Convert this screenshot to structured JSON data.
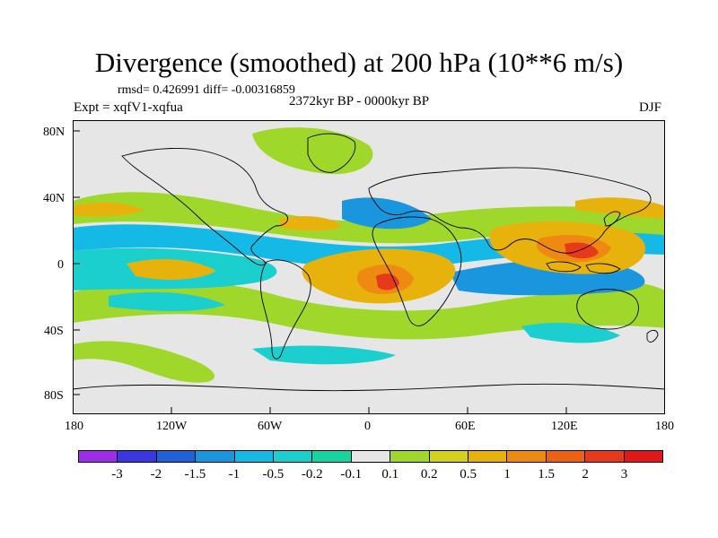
{
  "title": "Divergence (smoothed) at 200 hPa (10**6 m/s)",
  "stats": "rmsd= 0.426991 diff= -0.00316859",
  "experiment": "Expt = xqfV1-xqfua",
  "period": "2372kyr BP - 0000kyr BP",
  "season": "DJF",
  "y_axis_labels": [
    "80N",
    "40N",
    "0",
    "40S",
    "80S"
  ],
  "x_axis_labels": [
    "180",
    "120W",
    "60W",
    "0",
    "60E",
    "120E",
    "180"
  ],
  "colorbar": {
    "labels": [
      "-3",
      "-2",
      "-1.5",
      "-1",
      "-0.5",
      "-0.2",
      "-0.1",
      "0.1",
      "0.2",
      "0.5",
      "1",
      "1.5",
      "2",
      "3"
    ],
    "colors": [
      "#9c2ee8",
      "#3a37e0",
      "#1f62d8",
      "#1996de",
      "#14b9e6",
      "#1bcfcf",
      "#17d3a0",
      "#e6e6e6",
      "#9fd82a",
      "#d4d11c",
      "#e8b20c",
      "#ee8a12",
      "#ea6212",
      "#e63a1a",
      "#e01818"
    ]
  }
}
